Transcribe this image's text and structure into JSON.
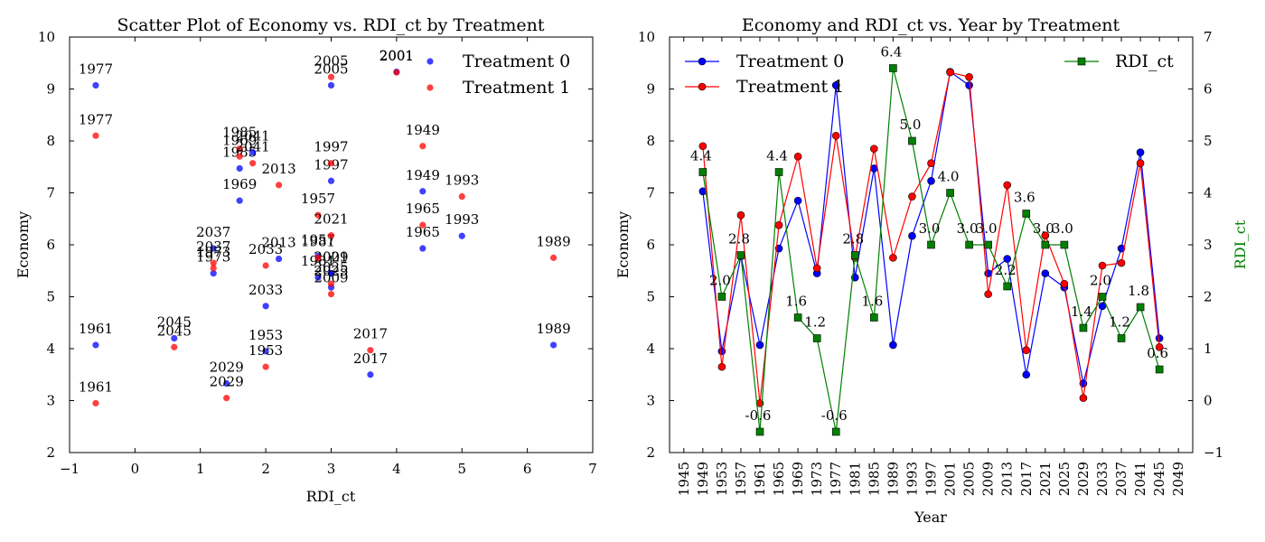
{
  "chart_data": [
    {
      "type": "scatter",
      "title": "Scatter Plot of Economy vs. RDI_ct by Treatment",
      "xlabel": "RDI_ct",
      "ylabel": "Economy",
      "xlim": [
        -1,
        7
      ],
      "ylim": [
        2,
        10
      ],
      "xticks": [
        "−1",
        "0",
        "1",
        "2",
        "3",
        "4",
        "5",
        "6",
        "7"
      ],
      "yticks": [
        "2",
        "3",
        "4",
        "5",
        "6",
        "7",
        "8",
        "9",
        "10"
      ],
      "legend_position": "top-right",
      "series": [
        {
          "name": "Treatment 0",
          "color": "#0000ff",
          "points": [
            {
              "x": 4.4,
              "y": 7.03,
              "label": "1949"
            },
            {
              "x": 2.0,
              "y": 3.95,
              "label": "1953"
            },
            {
              "x": 2.8,
              "y": 5.78,
              "label": "1957"
            },
            {
              "x": -0.6,
              "y": 4.07,
              "label": "1961"
            },
            {
              "x": 4.4,
              "y": 5.93,
              "label": "1965"
            },
            {
              "x": 1.6,
              "y": 6.85,
              "label": "1969"
            },
            {
              "x": 1.2,
              "y": 5.45,
              "label": "1973"
            },
            {
              "x": -0.6,
              "y": 9.07,
              "label": "1977"
            },
            {
              "x": 2.8,
              "y": 5.37,
              "label": "1981"
            },
            {
              "x": 1.6,
              "y": 7.47,
              "label": "1985"
            },
            {
              "x": 6.4,
              "y": 4.07,
              "label": "1989"
            },
            {
              "x": 5.0,
              "y": 6.17,
              "label": "1993"
            },
            {
              "x": 3.0,
              "y": 7.23,
              "label": "1997"
            },
            {
              "x": 4.0,
              "y": 9.33,
              "label": "2001"
            },
            {
              "x": 3.0,
              "y": 9.07,
              "label": "2005"
            },
            {
              "x": 3.0,
              "y": 5.45,
              "label": "2009"
            },
            {
              "x": 2.2,
              "y": 5.73,
              "label": "2013"
            },
            {
              "x": 3.6,
              "y": 3.5,
              "label": "2017"
            },
            {
              "x": 3.0,
              "y": 5.45,
              "label": "2021"
            },
            {
              "x": 3.0,
              "y": 5.18,
              "label": "2025"
            },
            {
              "x": 1.4,
              "y": 3.33,
              "label": "2029"
            },
            {
              "x": 2.0,
              "y": 4.82,
              "label": "2033"
            },
            {
              "x": 1.2,
              "y": 5.93,
              "label": "2037"
            },
            {
              "x": 1.8,
              "y": 7.78,
              "label": "2041"
            },
            {
              "x": 0.6,
              "y": 4.2,
              "label": "2045"
            }
          ]
        },
        {
          "name": "Treatment 1",
          "color": "#ff0000",
          "points": [
            {
              "x": 4.4,
              "y": 7.9,
              "label": "1949"
            },
            {
              "x": 2.0,
              "y": 3.65,
              "label": "1953"
            },
            {
              "x": 2.8,
              "y": 6.57,
              "label": "1957"
            },
            {
              "x": -0.6,
              "y": 2.95,
              "label": "1961"
            },
            {
              "x": 4.4,
              "y": 6.38,
              "label": "1965"
            },
            {
              "x": 1.6,
              "y": 7.7,
              "label": "1969"
            },
            {
              "x": 1.2,
              "y": 5.55,
              "label": "1973"
            },
            {
              "x": -0.6,
              "y": 8.1,
              "label": "1977"
            },
            {
              "x": 2.8,
              "y": 5.75,
              "label": "1981"
            },
            {
              "x": 1.6,
              "y": 7.85,
              "label": "1985"
            },
            {
              "x": 6.4,
              "y": 5.75,
              "label": "1989"
            },
            {
              "x": 5.0,
              "y": 6.93,
              "label": "1993"
            },
            {
              "x": 3.0,
              "y": 7.57,
              "label": "1997"
            },
            {
              "x": 4.0,
              "y": 9.32,
              "label": "2001"
            },
            {
              "x": 3.0,
              "y": 9.23,
              "label": "2005"
            },
            {
              "x": 3.0,
              "y": 5.05,
              "label": "2009"
            },
            {
              "x": 2.2,
              "y": 7.15,
              "label": "2013"
            },
            {
              "x": 3.6,
              "y": 3.97,
              "label": "2017"
            },
            {
              "x": 3.0,
              "y": 6.18,
              "label": "2021"
            },
            {
              "x": 3.0,
              "y": 5.25,
              "label": "2025"
            },
            {
              "x": 1.4,
              "y": 3.05,
              "label": "2029"
            },
            {
              "x": 2.0,
              "y": 5.6,
              "label": "2033"
            },
            {
              "x": 1.2,
              "y": 5.65,
              "label": "2037"
            },
            {
              "x": 1.8,
              "y": 7.57,
              "label": "2041"
            },
            {
              "x": 0.6,
              "y": 4.03,
              "label": "2045"
            }
          ]
        }
      ]
    },
    {
      "type": "line",
      "title": "Economy and RDI_ct vs. Year by Treatment",
      "xlabel": "Year",
      "ylabel": "Economy",
      "y2label": "RDI_ct",
      "xlim": [
        1942,
        2052
      ],
      "ylim": [
        2,
        10
      ],
      "y2lim": [
        -1,
        7
      ],
      "xticks": [
        "1945",
        "1949",
        "1953",
        "1957",
        "1961",
        "1965",
        "1969",
        "1973",
        "1977",
        "1981",
        "1985",
        "1989",
        "1993",
        "1997",
        "2001",
        "2005",
        "2009",
        "2013",
        "2017",
        "2021",
        "2025",
        "2029",
        "2033",
        "2037",
        "2041",
        "2045",
        "2049"
      ],
      "yticks": [
        "2",
        "3",
        "4",
        "5",
        "6",
        "7",
        "8",
        "9",
        "10"
      ],
      "y2ticks": [
        "−1",
        "0",
        "1",
        "2",
        "3",
        "4",
        "5",
        "6",
        "7"
      ],
      "x": [
        1949,
        1953,
        1957,
        1961,
        1965,
        1969,
        1973,
        1977,
        1981,
        1985,
        1989,
        1993,
        1997,
        2001,
        2005,
        2009,
        2013,
        2017,
        2021,
        2025,
        2029,
        2033,
        2037,
        2041,
        2045
      ],
      "legend_left": [
        "Treatment 0",
        "Treatment 1"
      ],
      "legend_right": [
        "RDI_ct"
      ],
      "series": [
        {
          "name": "Treatment 0",
          "color": "#0000ff",
          "marker": "circle",
          "axis": "left",
          "values": [
            7.03,
            3.95,
            5.78,
            4.07,
            5.93,
            6.85,
            5.45,
            9.07,
            5.37,
            7.47,
            4.07,
            6.17,
            7.23,
            9.33,
            9.07,
            5.45,
            5.73,
            3.5,
            5.45,
            5.18,
            3.33,
            4.82,
            5.93,
            7.78,
            4.2
          ]
        },
        {
          "name": "Treatment 1",
          "color": "#ff0000",
          "marker": "circle",
          "axis": "left",
          "values": [
            7.9,
            3.65,
            6.57,
            2.95,
            6.38,
            7.7,
            5.55,
            8.1,
            5.75,
            7.85,
            5.75,
            6.93,
            7.57,
            9.32,
            9.23,
            5.05,
            7.15,
            3.97,
            6.18,
            5.25,
            3.05,
            5.6,
            5.65,
            7.57,
            4.03
          ]
        },
        {
          "name": "RDI_ct",
          "color": "#008000",
          "marker": "square",
          "axis": "right",
          "values": [
            4.4,
            2.0,
            2.8,
            -0.6,
            4.4,
            1.6,
            1.2,
            -0.6,
            2.8,
            1.6,
            6.4,
            5.0,
            3.0,
            4.0,
            3.0,
            3.0,
            2.2,
            3.6,
            3.0,
            3.0,
            1.4,
            2.0,
            1.2,
            1.8,
            0.6
          ],
          "labels": [
            "4.4",
            "2.0",
            "2.8",
            "-0.6",
            "4.4",
            "1.6",
            "1.2",
            "-0.6",
            "2.8",
            "1.6",
            "6.4",
            "5.0",
            "3.0",
            "4.0",
            "3.0",
            "3.0",
            "2.2",
            "3.6",
            "3.0",
            "3.0",
            "1.4",
            "2.0",
            "1.2",
            "1.8",
            "0.6"
          ]
        }
      ]
    }
  ]
}
